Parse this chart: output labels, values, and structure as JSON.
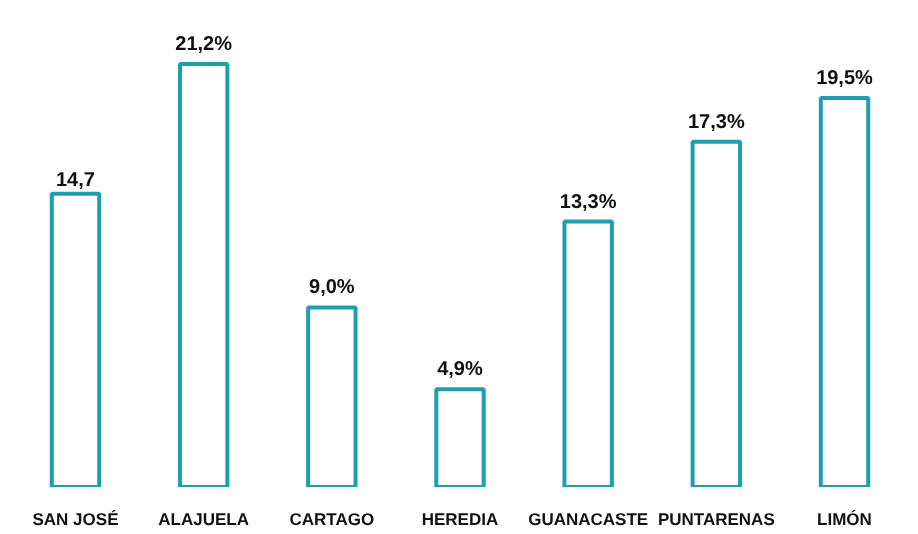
{
  "chart_data": {
    "type": "bar",
    "categories": [
      "SAN JOSÉ",
      "ALAJUELA",
      "CARTAGO",
      "HEREDIA",
      "GUANACASTE",
      "PUNTARENAS",
      "LIMÓN"
    ],
    "values": [
      14.7,
      21.2,
      9.0,
      4.9,
      13.3,
      17.3,
      19.5
    ],
    "value_labels": [
      "14,7",
      "21,2%",
      "9,0%",
      "4,9%",
      "13,3%",
      "17,3%",
      "19,5%"
    ],
    "color": "#1f9fae",
    "grid": false
  }
}
